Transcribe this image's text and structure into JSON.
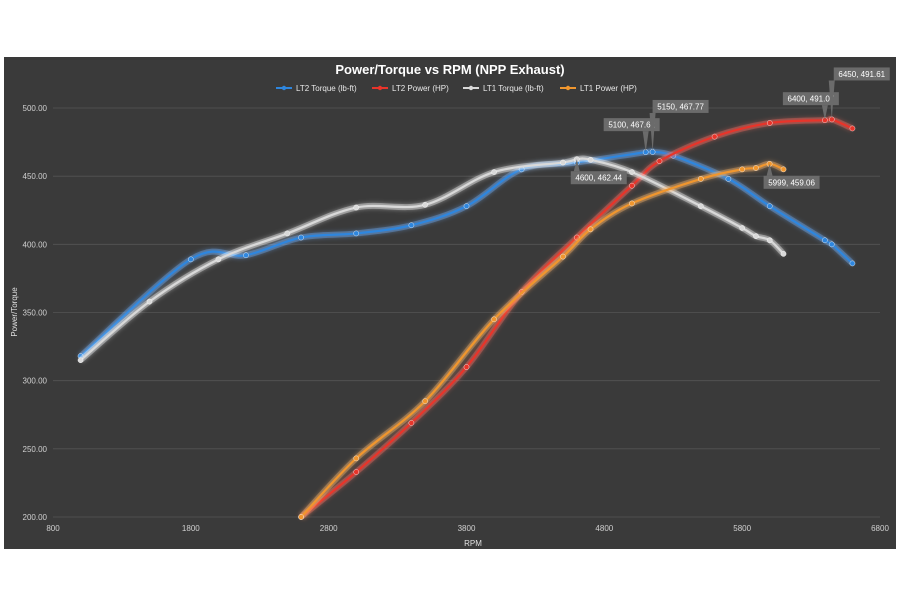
{
  "chart_data": {
    "type": "line",
    "title": "Power/Torque vs RPM (NPP Exhaust)",
    "xlabel": "RPM",
    "ylabel": "Power/Torque",
    "xlim": [
      800,
      6800
    ],
    "ylim": [
      200,
      500
    ],
    "xticks": [
      "800",
      "1800",
      "2800",
      "3800",
      "4800",
      "5800",
      "6800"
    ],
    "yticks": [
      "200.00",
      "250.00",
      "300.00",
      "350.00",
      "400.00",
      "450.00",
      "500.00"
    ],
    "grid": true,
    "legend_position": "top",
    "series": [
      {
        "name": "LT2 Torque (lb-ft)",
        "color": "#2e86de",
        "glow": "#6fb3ff",
        "x": [
          1000,
          1800,
          2200,
          2600,
          3000,
          3400,
          3800,
          4200,
          4600,
          5100,
          5150,
          5300,
          5700,
          6000,
          6400,
          6450,
          6600
        ],
        "y": [
          318,
          389,
          392,
          405,
          408,
          414,
          428,
          455,
          460,
          467.62,
          467.77,
          465,
          448,
          428,
          403,
          400,
          386
        ]
      },
      {
        "name": "LT2 Power (HP)",
        "color": "#e8342a",
        "glow": "#ff6b5f",
        "x": [
          2600,
          3000,
          3400,
          3800,
          4200,
          4600,
          5000,
          5200,
          5600,
          6000,
          6400,
          6450,
          6600
        ],
        "y": [
          200,
          233,
          269,
          310,
          365,
          405,
          443,
          461,
          479,
          489,
          491.07,
          491.61,
          485
        ]
      },
      {
        "name": "LT1 Torque (lb-ft)",
        "color": "#d9d9d9",
        "glow": "#ffffff",
        "x": [
          1000,
          1500,
          2000,
          2500,
          3000,
          3500,
          4000,
          4500,
          4600,
          4700,
          5000,
          5500,
          5800,
          5900,
          6000,
          6100
        ],
        "y": [
          315,
          358,
          389,
          408,
          427,
          429,
          453,
          460,
          462.44,
          462,
          453,
          428,
          412,
          406,
          403,
          393
        ]
      },
      {
        "name": "LT1 Power (HP)",
        "color": "#f0962e",
        "glow": "#ffb86b",
        "x": [
          2600,
          3000,
          3500,
          4000,
          4500,
          4700,
          5000,
          5500,
          5800,
          5900,
          5999,
          6100
        ],
        "y": [
          200,
          243,
          285,
          345,
          391,
          411,
          430,
          448,
          455,
          456,
          459.06,
          455
        ]
      }
    ],
    "annotations": [
      {
        "text": "5100, 467.62",
        "series": 0,
        "x": 5100,
        "y": 467.62
      },
      {
        "text": "5150, 467.77",
        "series": 0,
        "x": 5150,
        "y": 467.77
      },
      {
        "text": "4600, 462.44",
        "series": 2,
        "x": 4600,
        "y": 462.44
      },
      {
        "text": "6400, 491.07",
        "series": 1,
        "x": 6400,
        "y": 491.07
      },
      {
        "text": "6450, 491.61",
        "series": 1,
        "x": 6450,
        "y": 491.61
      },
      {
        "text": "5999, 459.06",
        "series": 3,
        "x": 5999,
        "y": 459.06
      }
    ],
    "colors": {
      "background": "#3a3a3a",
      "gridline": "#555555",
      "callout_box": "#6b6b6b"
    }
  }
}
